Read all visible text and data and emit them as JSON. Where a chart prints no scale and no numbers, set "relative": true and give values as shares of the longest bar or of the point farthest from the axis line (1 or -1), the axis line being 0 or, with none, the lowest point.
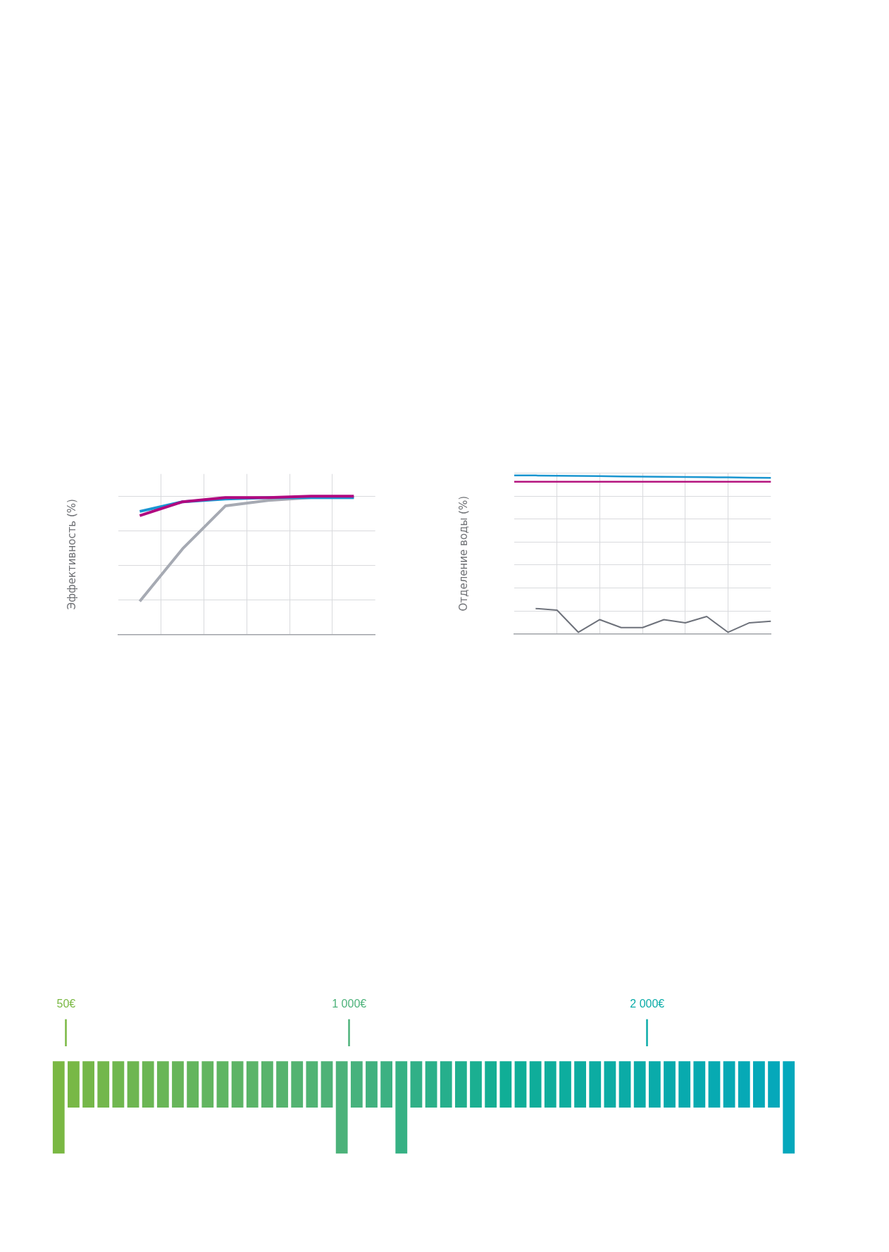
{
  "chart_data": [
    {
      "type": "line",
      "ylabel": "Эффективность (%)",
      "categories": [
        null,
        null,
        null,
        null,
        null,
        null
      ],
      "relative": true,
      "grid": true,
      "series": [
        {
          "color": "#a6aab3",
          "values": [
            0.24,
            0.62,
            0.93,
            0.97,
            0.99,
            0.99
          ]
        },
        {
          "color": "#1a96d2",
          "values": [
            0.89,
            0.96,
            0.98,
            0.99,
            0.99,
            0.99
          ]
        },
        {
          "color": "#b0087f",
          "values": [
            0.86,
            0.96,
            0.99,
            0.99,
            1,
            1
          ]
        }
      ]
    },
    {
      "type": "line",
      "ylabel": "Отделение воды (%)",
      "categories": [
        null,
        null,
        null,
        null,
        null,
        null,
        null,
        null,
        null,
        null,
        null,
        null,
        null
      ],
      "relative": true,
      "grid": true,
      "series": [
        {
          "color": "#1b96d0",
          "values": [
            1,
            0.999,
            0.997,
            0.996,
            0.995,
            0.993,
            0.992,
            0.991,
            0.989,
            0.988,
            0.987,
            0.985,
            0.984
          ]
        },
        {
          "color": "#b5157f",
          "values": [
            0.96,
            0.96,
            0.96,
            0.96,
            0.96,
            0.96,
            0.96,
            0.96,
            0.96,
            0.96,
            0.96,
            0.96,
            0.96
          ]
        },
        {
          "color": "#6e727b",
          "values": [
            null,
            0.16,
            0.15,
            0.01,
            0.09,
            0.04,
            0.04,
            0.09,
            0.07,
            0.11,
            0.01,
            0.07,
            0.08
          ]
        }
      ]
    },
    {
      "type": "bar",
      "relative": true,
      "xlim": [
        0,
        2500
      ],
      "xticks": [
        {
          "value": 50,
          "label": "50€"
        },
        {
          "value": 1000,
          "label": "1 000€"
        },
        {
          "value": 2000,
          "label": "2 000€"
        }
      ],
      "x": [
        25,
        75,
        125,
        175,
        225,
        275,
        325,
        375,
        425,
        475,
        525,
        575,
        625,
        675,
        725,
        775,
        825,
        875,
        925,
        975,
        1025,
        1075,
        1125,
        1175,
        1225,
        1275,
        1325,
        1375,
        1425,
        1475,
        1525,
        1575,
        1625,
        1675,
        1725,
        1775,
        1825,
        1875,
        1925,
        1975,
        2025,
        2075,
        2125,
        2175,
        2225,
        2275,
        2325,
        2375,
        2425,
        2475
      ],
      "values": [
        -1,
        -0.5,
        -0.5,
        -0.5,
        -0.5,
        -0.5,
        -0.5,
        -0.5,
        -0.5,
        -0.5,
        -0.5,
        -0.5,
        -0.5,
        -0.5,
        -0.5,
        -0.5,
        -0.5,
        -0.5,
        -0.5,
        -1,
        -0.5,
        -0.5,
        -0.5,
        -1,
        -0.5,
        -0.5,
        -0.5,
        -0.5,
        -0.5,
        -0.5,
        -0.5,
        -0.5,
        -0.5,
        -0.5,
        -0.5,
        -0.5,
        -0.5,
        -0.5,
        -0.5,
        -0.5,
        -0.5,
        -0.5,
        -0.5,
        -0.5,
        -0.5,
        -0.5,
        -0.5,
        -0.5,
        -0.5,
        -1
      ],
      "colors": [
        "#7ab843",
        "#78b846",
        "#75b749",
        "#73b74c",
        "#70b74f",
        "#6eb651",
        "#6bb654",
        "#69b657",
        "#67b55a",
        "#64b55d",
        "#62b560",
        "#5fb563",
        "#5db466",
        "#5bb469",
        "#58b46c",
        "#56b36e",
        "#53b371",
        "#51b374",
        "#4eb277",
        "#4cb27a",
        "#47b27d",
        "#41b17f",
        "#3cb182",
        "#36b184",
        "#31b087",
        "#2bb089",
        "#26af8c",
        "#20af8e",
        "#1baf91",
        "#15ae93",
        "#10ae96",
        "#0fae98",
        "#0fad9a",
        "#0ead9c",
        "#0dad9e",
        "#0daca0",
        "#0caca2",
        "#0caca4",
        "#0baba6",
        "#0aaba8",
        "#0aabaa",
        "#09aaac",
        "#08aaae",
        "#08aab0",
        "#07aab2",
        "#07a9b4",
        "#06a9b6",
        "#05a9b8",
        "#05a8ba",
        "#04a8bc"
      ]
    }
  ]
}
